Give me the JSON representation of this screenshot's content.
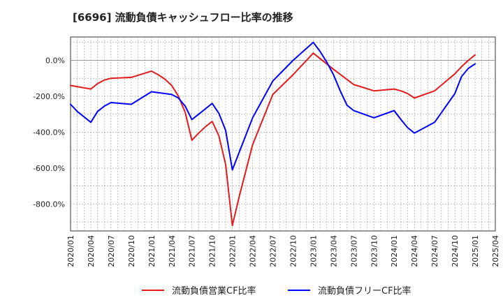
{
  "title": "[6696]  流動負債キャッシュフロー比率の推移",
  "chart_data": {
    "type": "line",
    "title": "[6696]  流動負債キャッシュフロー比率の推移",
    "xlabel": "",
    "ylabel": "",
    "x_ticks": [
      "2020/01",
      "2020/04",
      "2020/07",
      "2020/10",
      "2021/01",
      "2021/04",
      "2021/07",
      "2021/10",
      "2022/01",
      "2022/04",
      "2022/07",
      "2022/10",
      "2023/01",
      "2023/04",
      "2023/07",
      "2023/10",
      "2024/01",
      "2024/04",
      "2024/07",
      "2024/10",
      "2025/01",
      "2025/04"
    ],
    "y_ticks": [
      "0.0%",
      "-200.0%",
      "-400.0%",
      "-600.0%",
      "-800.0%"
    ],
    "y_tick_values": [
      0,
      -200,
      -400,
      -600,
      -800
    ],
    "ylim": [
      -950,
      130
    ],
    "grid": true,
    "legend_position": "bottom",
    "series": [
      {
        "name": "流動負債営業CF比率",
        "color": "#e41a1c",
        "x": [
          "2020/01",
          "2020/04",
          "2020/05",
          "2020/06",
          "2020/07",
          "2020/10",
          "2021/01",
          "2021/02",
          "2021/03",
          "2021/04",
          "2021/05",
          "2021/06",
          "2021/07",
          "2021/08",
          "2021/09",
          "2021/10",
          "2021/11",
          "2021/12",
          "2022/01",
          "2022/02",
          "2022/04",
          "2022/07",
          "2022/10",
          "2023/01",
          "2023/04",
          "2023/07",
          "2023/10",
          "2024/01",
          "2024/02",
          "2024/03",
          "2024/04",
          "2024/07",
          "2024/10",
          "2024/11",
          "2024/12",
          "2025/01"
        ],
        "values": [
          -140,
          -160,
          -130,
          -110,
          -100,
          -95,
          -60,
          -80,
          -105,
          -140,
          -200,
          -290,
          -445,
          -405,
          -370,
          -340,
          -420,
          -580,
          -920,
          -760,
          -470,
          -190,
          -80,
          40,
          -50,
          -135,
          -170,
          -160,
          -170,
          -185,
          -210,
          -170,
          -75,
          -35,
          0,
          30
        ]
      },
      {
        "name": "流動負債フリーCF比率",
        "color": "#0000ff",
        "x": [
          "2020/01",
          "2020/02",
          "2020/03",
          "2020/04",
          "2020/05",
          "2020/06",
          "2020/07",
          "2020/10",
          "2021/01",
          "2021/04",
          "2021/05",
          "2021/06",
          "2021/07",
          "2021/08",
          "2021/09",
          "2021/10",
          "2021/11",
          "2021/12",
          "2022/01",
          "2022/04",
          "2022/07",
          "2022/10",
          "2023/01",
          "2023/02",
          "2023/03",
          "2023/04",
          "2023/05",
          "2023/06",
          "2023/07",
          "2023/10",
          "2024/01",
          "2024/02",
          "2024/03",
          "2024/04",
          "2024/07",
          "2024/10",
          "2024/11",
          "2024/12",
          "2025/01"
        ],
        "values": [
          -245,
          -285,
          -315,
          -345,
          -285,
          -255,
          -235,
          -245,
          -175,
          -190,
          -210,
          -255,
          -330,
          -300,
          -270,
          -240,
          -295,
          -390,
          -610,
          -320,
          -115,
          0,
          100,
          50,
          -10,
          -80,
          -170,
          -250,
          -280,
          -320,
          -280,
          -330,
          -375,
          -405,
          -345,
          -185,
          -90,
          -45,
          -20
        ]
      }
    ]
  }
}
